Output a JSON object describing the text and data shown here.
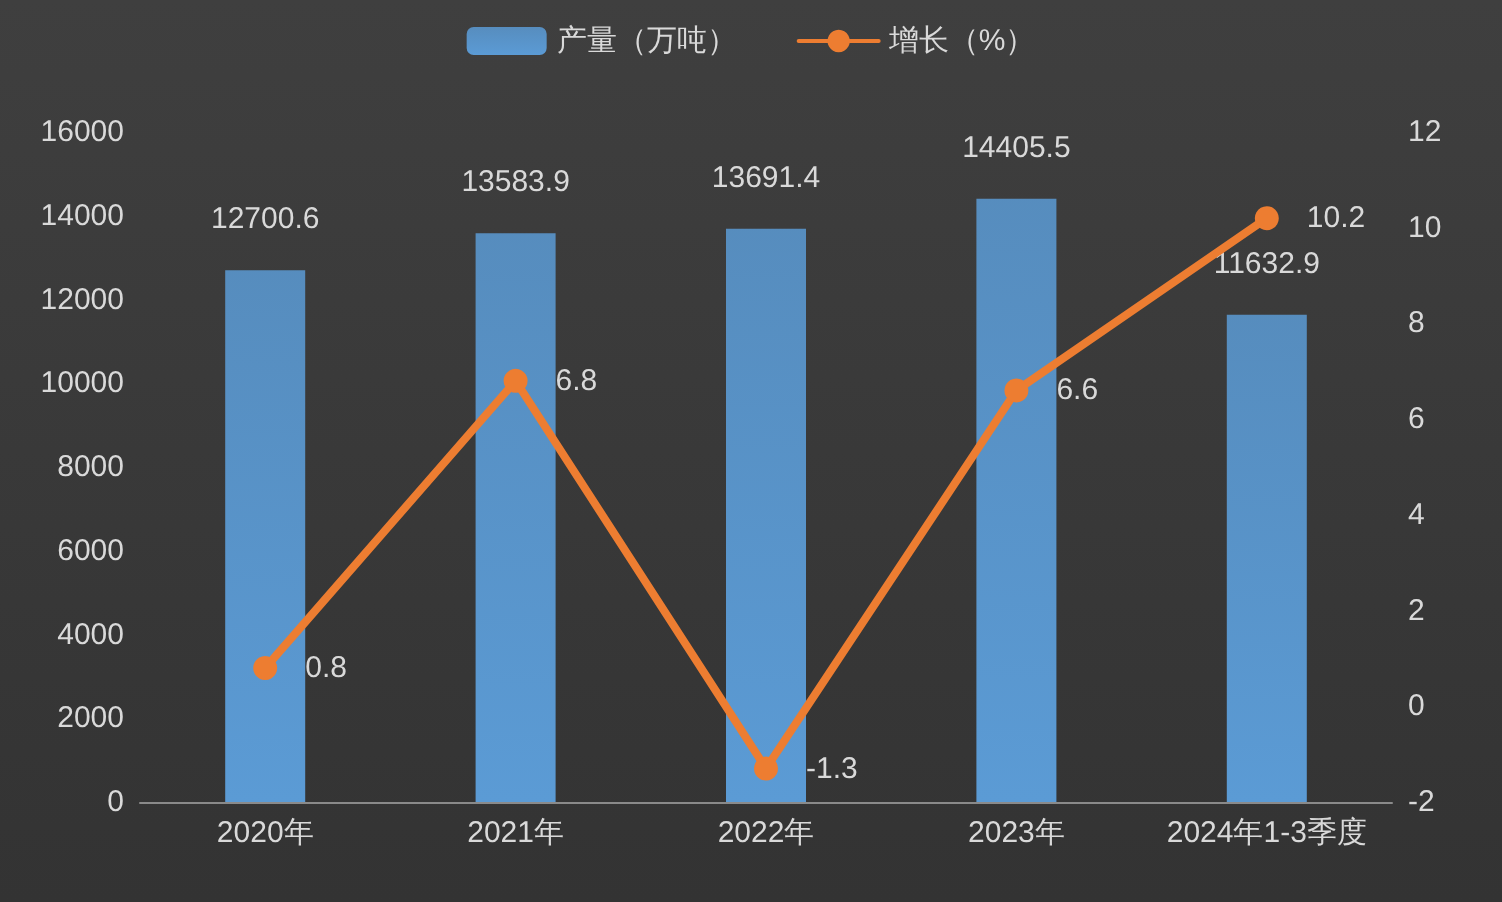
{
  "chart_data": {
    "type": "bar",
    "categories": [
      "2020年",
      "2021年",
      "2022年",
      "2023年",
      "2024年1-3季度"
    ],
    "series": [
      {
        "name": "产量（万吨）",
        "color": "#5b9bd5",
        "values": [
          12700.6,
          13583.9,
          13691.4,
          14405.5,
          11632.9
        ]
      },
      {
        "name": "增长（%）",
        "type": "line",
        "axis": "y2",
        "color": "#ed7d31",
        "values": [
          0.8,
          6.8,
          -1.3,
          6.6,
          10.2
        ]
      }
    ],
    "ylim": [
      0,
      16000
    ],
    "yticks": [
      0,
      2000,
      4000,
      6000,
      8000,
      10000,
      12000,
      14000,
      16000
    ],
    "y2lim": [
      -2,
      12
    ],
    "y2ticks": [
      -2,
      0,
      2,
      4,
      6,
      8,
      10,
      12
    ],
    "data_labels": true,
    "legend": "top",
    "grid": false,
    "marker": "circle",
    "line_style": "solid"
  }
}
